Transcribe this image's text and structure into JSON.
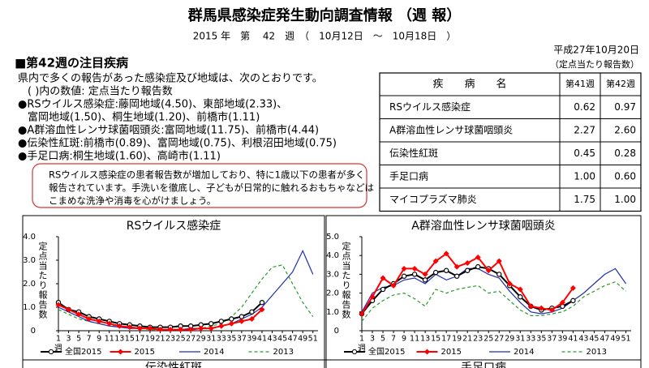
{
  "header": {
    "title": "群馬県感染症発生動向調査情報 （週 報）",
    "subtitle": "2015 年　第　 42　週　（　10月12日　～　10月18日　）",
    "date": "平成27年10月20日"
  },
  "section": {
    "heading": "■第42週の注目疾病",
    "lines": [
      "県内で多くの報告があった感染症及び地域は、次のとおりです。",
      "( )内の数値: 定点当たり報告数",
      "●RSウイルス感染症:藤岡地域(4.50)、東部地域(2.33)、",
      "富岡地域(1.50)、桐生地域(1.20)、前橋市(1.11)",
      "●A群溶血性レンサ球菌咽頭炎:富岡地域(11.75)、前橋市(4.44)",
      "●伝染性紅斑:前橋市(0.89)、富岡地域(0.75)、利根沼田地域(0.75)",
      "●手足口病:桐生地域(1.60)、高崎市(1.11)"
    ]
  },
  "notice": [
    "RSウイルス感染症の患者報告数が増加しており、特に1歳以下の患者が多く",
    "報告されています。手洗いを徹底し、子どもが日常的に触れるおもちゃなどは",
    "こまめな洗浄や消毒を心がけましょう。"
  ],
  "table": {
    "caption": "（定点当たり報告数）",
    "header": [
      "疾　　病　　名",
      "第41週",
      "第42週"
    ],
    "rows": [
      [
        "RSウイルス感染症",
        "0.62",
        "0.97"
      ],
      [
        "A群溶血性レンサ球菌咽頭炎",
        "2.27",
        "2.60"
      ],
      [
        "伝染性紅斑",
        "0.45",
        "0.28"
      ],
      [
        "手足口病",
        "1.00",
        "0.60"
      ],
      [
        "マイコプラズマ肺炎",
        "1.75",
        "1.00"
      ]
    ]
  },
  "chart_data": [
    {
      "type": "line",
      "title": "RSウイルス感染症",
      "y_label": "定点当たり報告数",
      "x_unit": "週",
      "x": [
        1,
        3,
        5,
        7,
        9,
        11,
        13,
        15,
        17,
        19,
        21,
        23,
        25,
        27,
        29,
        31,
        33,
        35,
        37,
        39,
        41,
        43,
        45,
        47,
        49,
        51
      ],
      "xlim": [
        1,
        52
      ],
      "xticks": [
        1,
        3,
        5,
        7,
        9,
        11,
        13,
        15,
        17,
        19,
        21,
        23,
        25,
        27,
        29,
        31,
        33,
        35,
        37,
        39,
        41,
        43,
        45,
        47,
        49,
        51
      ],
      "ylim": [
        0,
        4
      ],
      "yticks": [
        0,
        {
          "value": 1,
          "label": "1.0"
        },
        {
          "value": 2,
          "label": "2.0"
        },
        {
          "value": 3,
          "label": "3.0"
        },
        {
          "value": 4,
          "label": "4.0"
        }
      ],
      "series": [
        {
          "name": "全国2015",
          "color": "#000000",
          "style": "solid",
          "marker": "circle",
          "values": [
            1.2,
            0.9,
            0.8,
            0.6,
            0.5,
            0.4,
            0.3,
            0.25,
            0.2,
            0.15,
            0.15,
            0.15,
            0.2,
            0.2,
            0.25,
            0.3,
            0.4,
            0.5,
            0.6,
            0.8,
            1.2,
            null,
            null,
            null,
            null,
            null
          ]
        },
        {
          "name": "2015",
          "color": "#ff0000",
          "style": "solid",
          "marker": "diamond",
          "values": [
            1.1,
            0.9,
            0.7,
            0.5,
            0.4,
            0.3,
            0.2,
            0.15,
            0.1,
            0.1,
            0.05,
            0.05,
            0.05,
            0.05,
            0.1,
            0.1,
            0.2,
            0.3,
            0.4,
            0.5,
            0.9,
            null,
            null,
            null,
            null,
            null
          ]
        },
        {
          "name": "2014",
          "color": "#1f2fb0",
          "style": "solid",
          "values": [
            1.0,
            0.8,
            0.6,
            0.4,
            0.3,
            0.2,
            0.15,
            0.1,
            0.1,
            0.1,
            0.05,
            0.05,
            0.05,
            0.1,
            0.1,
            0.1,
            0.2,
            0.3,
            0.5,
            0.7,
            1.0,
            1.5,
            2.0,
            2.5,
            3.4,
            2.4
          ]
        },
        {
          "name": "2013",
          "color": "#2a9a2a",
          "style": "dashed",
          "values": [
            0.9,
            0.7,
            0.5,
            0.4,
            0.3,
            0.2,
            0.2,
            0.1,
            0.1,
            0.05,
            0.05,
            0.05,
            0.05,
            0.05,
            0.1,
            0.2,
            0.3,
            0.6,
            1.0,
            1.6,
            2.2,
            2.7,
            2.8,
            2.0,
            1.2,
            0.6
          ]
        }
      ]
    },
    {
      "type": "line",
      "title": "A群溶血性レンサ球菌咽頭炎",
      "y_label": "定点当たり報告数",
      "x_unit": "週",
      "x": [
        1,
        3,
        5,
        7,
        9,
        11,
        13,
        15,
        17,
        19,
        21,
        23,
        25,
        27,
        29,
        31,
        33,
        35,
        37,
        39,
        41,
        43,
        45,
        47,
        49,
        51
      ],
      "xlim": [
        1,
        52
      ],
      "xticks": [
        1,
        3,
        5,
        7,
        9,
        11,
        13,
        15,
        17,
        19,
        21,
        23,
        25,
        27,
        29,
        31,
        33,
        35,
        37,
        39,
        41,
        43,
        45,
        47,
        49,
        51
      ],
      "ylim": [
        0,
        5
      ],
      "yticks": [
        0,
        {
          "value": 1,
          "label": "1.0"
        },
        {
          "value": 2,
          "label": "2.0"
        },
        {
          "value": 3,
          "label": "3.0"
        },
        {
          "value": 4,
          "label": "4.0"
        },
        {
          "value": 5,
          "label": "5.0"
        }
      ],
      "series": [
        {
          "name": "全国2015",
          "color": "#000000",
          "style": "solid",
          "marker": "circle",
          "values": [
            0.9,
            1.6,
            2.2,
            2.5,
            2.9,
            3.0,
            2.7,
            3.1,
            3.2,
            2.9,
            3.2,
            3.4,
            3.3,
            3.0,
            2.4,
            1.8,
            1.3,
            1.1,
            1.2,
            1.3,
            1.6,
            null,
            null,
            null,
            null,
            null
          ]
        },
        {
          "name": "2015",
          "color": "#ff0000",
          "style": "solid",
          "marker": "diamond",
          "values": [
            0.9,
            1.8,
            2.8,
            2.4,
            3.3,
            3.3,
            3.0,
            3.7,
            4.1,
            3.4,
            3.6,
            3.9,
            3.2,
            3.7,
            2.5,
            2.2,
            1.3,
            1.2,
            1.1,
            1.5,
            2.27,
            null,
            null,
            null,
            null,
            null
          ]
        },
        {
          "name": "2014",
          "color": "#1f2fb0",
          "style": "solid",
          "values": [
            1.0,
            2.0,
            2.3,
            2.4,
            2.7,
            2.8,
            2.5,
            3.0,
            2.7,
            2.9,
            3.3,
            3.3,
            3.0,
            2.8,
            2.1,
            1.5,
            1.0,
            0.9,
            1.0,
            1.2,
            1.6,
            2.0,
            2.5,
            3.0,
            3.3,
            2.5
          ]
        },
        {
          "name": "2013",
          "color": "#2a9a2a",
          "style": "dashed",
          "values": [
            0.5,
            1.2,
            1.6,
            1.9,
            2.0,
            1.7,
            1.3,
            2.2,
            2.0,
            2.2,
            2.3,
            2.4,
            2.0,
            2.1,
            1.6,
            1.1,
            0.8,
            0.8,
            0.9,
            1.0,
            1.3,
            1.8,
            2.1,
            2.4,
            2.6,
            2.1
          ]
        }
      ]
    }
  ],
  "next_charts": [
    "伝染性紅斑",
    "手足口病"
  ]
}
